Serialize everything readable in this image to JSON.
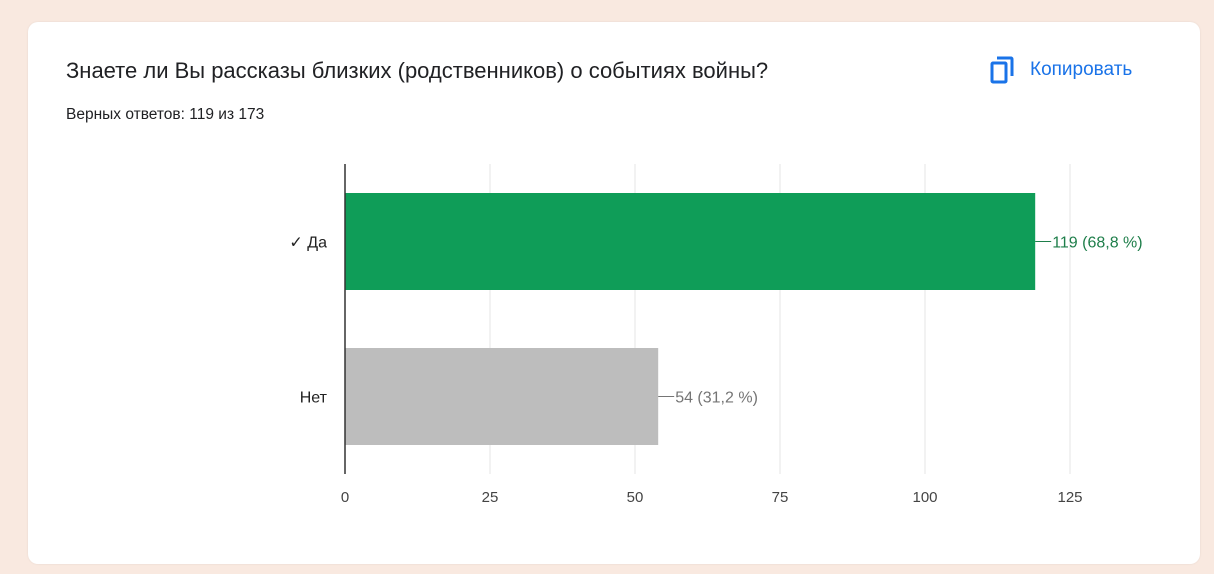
{
  "question": {
    "title": "Знаете ли Вы рассказы близких (родственников) о событиях войны?",
    "subtitle": "Верных ответов: 119 из 173"
  },
  "actions": {
    "copy_label": "Копировать",
    "copy_icon": "copy-icon"
  },
  "colors": {
    "correct_bar": "#0f9d58",
    "incorrect_bar": "#bdbdbd",
    "correct_label": "#1e7e4a",
    "incorrect_label": "#757575",
    "accent": "#1a73e8"
  },
  "chart_data": {
    "type": "bar",
    "orientation": "horizontal",
    "categories": [
      "✓ Да",
      "Нет"
    ],
    "values": [
      119,
      54
    ],
    "data_labels": [
      "119 (68,8 %)",
      "54 (31,2 %)"
    ],
    "correct": [
      true,
      false
    ],
    "xlim": [
      0,
      125
    ],
    "xticks": [
      "0",
      "25",
      "50",
      "75",
      "100",
      "125"
    ],
    "grid": true,
    "legend": "none"
  }
}
